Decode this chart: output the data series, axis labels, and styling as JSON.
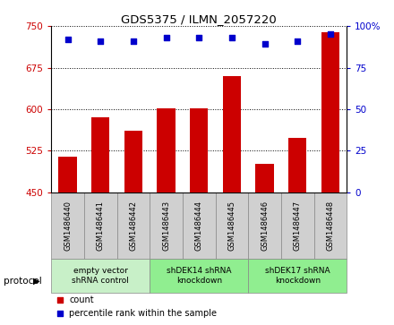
{
  "title": "GDS5375 / ILMN_2057220",
  "samples": [
    "GSM1486440",
    "GSM1486441",
    "GSM1486442",
    "GSM1486443",
    "GSM1486444",
    "GSM1486445",
    "GSM1486446",
    "GSM1486447",
    "GSM1486448"
  ],
  "counts": [
    515,
    585,
    562,
    601,
    601,
    660,
    502,
    548,
    738
  ],
  "percentile_ranks": [
    92,
    91,
    91,
    93,
    93,
    93,
    89,
    91,
    95
  ],
  "ylim_left": [
    450,
    750
  ],
  "yticks_left": [
    450,
    525,
    600,
    675,
    750
  ],
  "ylim_right": [
    0,
    100
  ],
  "yticks_right": [
    0,
    25,
    50,
    75,
    100
  ],
  "bar_color": "#cc0000",
  "dot_color": "#0000cc",
  "groups": [
    {
      "label": "empty vector\nshRNA control",
      "start": 0,
      "end": 3,
      "color": "#c8f0c8"
    },
    {
      "label": "shDEK14 shRNA\nknockdown",
      "start": 3,
      "end": 6,
      "color": "#90ee90"
    },
    {
      "label": "shDEK17 shRNA\nknockdown",
      "start": 6,
      "end": 9,
      "color": "#90ee90"
    }
  ],
  "legend_count_label": "count",
  "legend_pct_label": "percentile rank within the sample",
  "protocol_label": "protocol",
  "tick_box_color": "#d0d0d0",
  "tick_box_edge_color": "#888888"
}
